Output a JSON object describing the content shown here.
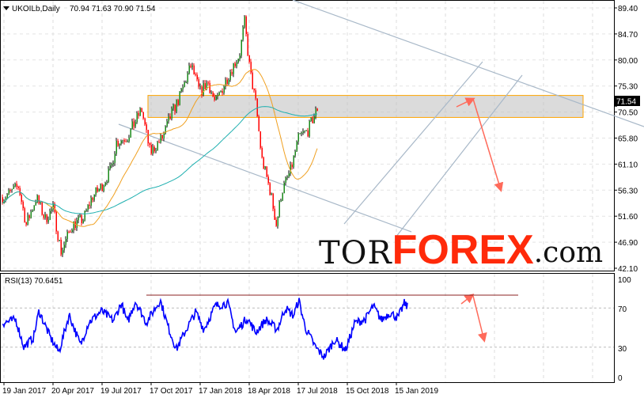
{
  "header": {
    "symbol": "UKOILb,Daily",
    "ohlc": "70.94 71.63 70.90 71.54"
  },
  "price_axis": [
    "89.40",
    "84.70",
    "80.00",
    "75.30",
    "70.50",
    "65.80",
    "61.10",
    "56.30",
    "51.60",
    "46.90",
    "42.10"
  ],
  "current_price": "71.54",
  "rsi": {
    "label": "RSI(13) 70.6451",
    "levels": [
      "100",
      "70",
      "30",
      "0"
    ]
  },
  "time_axis": [
    "19 Jan 2017",
    "20 Apr 2017",
    "19 Jul 2017",
    "17 Oct 2017",
    "17 Jan 2018",
    "18 Apr 2018",
    "17 Jul 2018",
    "15 Oct 2018",
    "15 Jan 2019"
  ],
  "logo": {
    "tor": "TOR",
    "forex": "FOREX",
    "com": ".com"
  },
  "colors": {
    "up": "#008000",
    "down": "#ff0000",
    "ma_fast": "#f0a020",
    "ma_slow": "#20b0b0",
    "rsi": "#0000ff",
    "zone": "#ffa500",
    "arrow": "#ff6a5a",
    "trend": "#a8b8c8"
  },
  "chart_data": {
    "type": "candlestick",
    "symbol": "UKOILb",
    "timeframe": "Daily",
    "price_keyframes": [
      [
        "2017-01-19",
        55
      ],
      [
        "2017-02-15",
        57
      ],
      [
        "2017-03-01",
        50
      ],
      [
        "2017-03-20",
        55
      ],
      [
        "2017-04-05",
        51
      ],
      [
        "2017-04-20",
        53
      ],
      [
        "2017-05-05",
        45
      ],
      [
        "2017-05-25",
        50
      ],
      [
        "2017-06-15",
        51
      ],
      [
        "2017-07-01",
        55
      ],
      [
        "2017-07-19",
        57
      ],
      [
        "2017-08-05",
        60
      ],
      [
        "2017-08-15",
        65
      ],
      [
        "2017-09-05",
        66
      ],
      [
        "2017-10-01",
        71
      ],
      [
        "2017-10-17",
        63
      ],
      [
        "2017-11-10",
        66
      ],
      [
        "2017-11-25",
        70
      ],
      [
        "2017-12-10",
        73
      ],
      [
        "2018-01-01",
        79
      ],
      [
        "2018-01-17",
        74
      ],
      [
        "2018-02-01",
        76
      ],
      [
        "2018-02-15",
        72
      ],
      [
        "2018-03-01",
        75
      ],
      [
        "2018-03-15",
        78
      ],
      [
        "2018-04-01",
        81
      ],
      [
        "2018-04-10",
        87
      ],
      [
        "2018-04-20",
        78
      ],
      [
        "2018-05-01",
        72
      ],
      [
        "2018-05-12",
        62
      ],
      [
        "2018-05-28",
        56
      ],
      [
        "2018-06-08",
        50
      ],
      [
        "2018-06-18",
        56
      ],
      [
        "2018-07-05",
        60
      ],
      [
        "2018-07-20",
        66
      ],
      [
        "2018-08-05",
        67
      ],
      [
        "2018-08-25",
        71.54
      ]
    ],
    "rsi_keyframes": [
      [
        "2017-01-19",
        55
      ],
      [
        "2017-02-10",
        58
      ],
      [
        "2017-02-25",
        30
      ],
      [
        "2017-03-15",
        40
      ],
      [
        "2017-03-25",
        67
      ],
      [
        "2017-04-15",
        40
      ],
      [
        "2017-05-01",
        25
      ],
      [
        "2017-05-20",
        63
      ],
      [
        "2017-06-10",
        32
      ],
      [
        "2017-06-25",
        55
      ],
      [
        "2017-07-19",
        67
      ],
      [
        "2017-08-10",
        57
      ],
      [
        "2017-08-25",
        75
      ],
      [
        "2017-09-05",
        55
      ],
      [
        "2017-09-20",
        77
      ],
      [
        "2017-10-10",
        55
      ],
      [
        "2017-11-05",
        78
      ],
      [
        "2017-11-20",
        50
      ],
      [
        "2017-12-05",
        28
      ],
      [
        "2017-12-25",
        50
      ],
      [
        "2018-01-10",
        66
      ],
      [
        "2018-01-25",
        48
      ],
      [
        "2018-02-15",
        72
      ],
      [
        "2018-03-10",
        75
      ],
      [
        "2018-03-25",
        45
      ],
      [
        "2018-04-15",
        60
      ],
      [
        "2018-05-01",
        45
      ],
      [
        "2018-05-20",
        58
      ],
      [
        "2018-06-10",
        48
      ],
      [
        "2018-06-25",
        70
      ],
      [
        "2018-07-10",
        62
      ],
      [
        "2018-07-20",
        78
      ],
      [
        "2018-08-01",
        50
      ],
      [
        "2018-08-20",
        30
      ],
      [
        "2018-09-05",
        20
      ],
      [
        "2018-09-25",
        38
      ],
      [
        "2018-10-15",
        27
      ],
      [
        "2018-11-01",
        55
      ],
      [
        "2018-11-20",
        58
      ],
      [
        "2018-12-05",
        72
      ],
      [
        "2018-12-20",
        58
      ],
      [
        "2019-01-05",
        65
      ],
      [
        "2019-01-20",
        60
      ],
      [
        "2019-02-01",
        75
      ],
      [
        "2019-02-08",
        70
      ]
    ],
    "price_range": [
      42.1,
      89.4
    ],
    "moving_averages": [
      "fast",
      "slow"
    ],
    "resistance_zone": [
      69.5,
      73.5
    ]
  }
}
